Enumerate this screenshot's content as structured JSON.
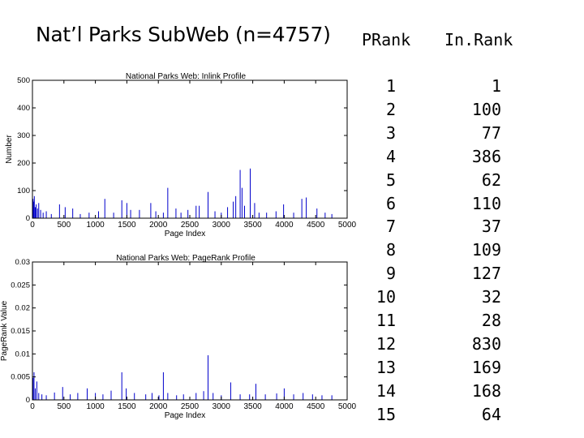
{
  "slide": {
    "title": "Nat’l Parks SubWeb (n=4757)"
  },
  "table": {
    "headers": [
      "PRank",
      "In.Rank"
    ],
    "prank": [
      "1",
      "2",
      "3",
      "4",
      "5",
      "6",
      "7",
      "8",
      "9",
      "10",
      "11",
      "12",
      "13",
      "14",
      "15"
    ],
    "inrank": [
      "1",
      "100",
      "77",
      "386",
      "62",
      "110",
      "37",
      "109",
      "127",
      "32",
      "28",
      "830",
      "169",
      "168",
      "64"
    ]
  },
  "colors": {
    "series": "#0000cc",
    "axis": "#000000"
  },
  "chart_data": [
    {
      "type": "bar",
      "title": "National Parks Web:  Inlink Profile",
      "xlabel": "Page Index",
      "ylabel": "Number",
      "xlim": [
        0,
        5000
      ],
      "ylim": [
        0,
        500
      ],
      "xticks": [
        "0",
        "500",
        "1000",
        "1500",
        "2000",
        "2500",
        "3000",
        "3500",
        "4000",
        "4500",
        "5000"
      ],
      "yticks": [
        "0",
        "100",
        "200",
        "300",
        "400",
        "500"
      ],
      "grid": false,
      "x": [
        0,
        10,
        20,
        30,
        45,
        60,
        80,
        100,
        130,
        170,
        220,
        300,
        430,
        520,
        640,
        760,
        900,
        1050,
        1150,
        1290,
        1420,
        1500,
        1560,
        1700,
        1880,
        1960,
        2080,
        2150,
        2280,
        2360,
        2470,
        2600,
        2650,
        2790,
        2900,
        3000,
        3100,
        3190,
        3230,
        3300,
        3330,
        3370,
        3460,
        3530,
        3600,
        3720,
        3870,
        3990,
        4150,
        4280,
        4350,
        4520,
        4650,
        4757
      ],
      "values": [
        95,
        70,
        60,
        80,
        40,
        50,
        35,
        55,
        30,
        20,
        25,
        15,
        50,
        40,
        35,
        15,
        20,
        25,
        70,
        20,
        65,
        55,
        30,
        30,
        55,
        25,
        20,
        110,
        35,
        20,
        30,
        45,
        45,
        95,
        25,
        20,
        40,
        60,
        80,
        175,
        110,
        45,
        180,
        55,
        20,
        20,
        25,
        50,
        20,
        70,
        75,
        35,
        20,
        15
      ]
    },
    {
      "type": "bar",
      "title": "National Parks Web:  PageRank Profile",
      "xlabel": "Page Index",
      "ylabel": "PageRank Value",
      "xlim": [
        0,
        5000
      ],
      "ylim": [
        0,
        0.03
      ],
      "xticks": [
        "0",
        "500",
        "1000",
        "1500",
        "2000",
        "2500",
        "3000",
        "3500",
        "4000",
        "4500",
        "5000"
      ],
      "yticks": [
        "0",
        "0.005",
        "0.01",
        "0.015",
        "0.02",
        "0.025",
        "0.03"
      ],
      "grid": false,
      "x": [
        0,
        10,
        25,
        45,
        70,
        100,
        150,
        220,
        350,
        480,
        600,
        720,
        870,
        1000,
        1120,
        1250,
        1420,
        1490,
        1620,
        1800,
        1900,
        2010,
        2080,
        2150,
        2290,
        2400,
        2600,
        2720,
        2790,
        2870,
        3000,
        3150,
        3300,
        3450,
        3550,
        3700,
        3880,
        4000,
        4150,
        4300,
        4450,
        4600,
        4757
      ],
      "values": [
        0.0065,
        0.0048,
        0.006,
        0.0025,
        0.004,
        0.0015,
        0.0012,
        0.001,
        0.0016,
        0.0028,
        0.0012,
        0.0015,
        0.0025,
        0.0015,
        0.0012,
        0.002,
        0.006,
        0.0025,
        0.0015,
        0.0012,
        0.0015,
        0.001,
        0.006,
        0.0015,
        0.001,
        0.0012,
        0.0015,
        0.0019,
        0.0097,
        0.0015,
        0.001,
        0.0038,
        0.0012,
        0.0012,
        0.0035,
        0.0012,
        0.0014,
        0.0025,
        0.0012,
        0.0015,
        0.0012,
        0.001,
        0.001
      ]
    }
  ]
}
